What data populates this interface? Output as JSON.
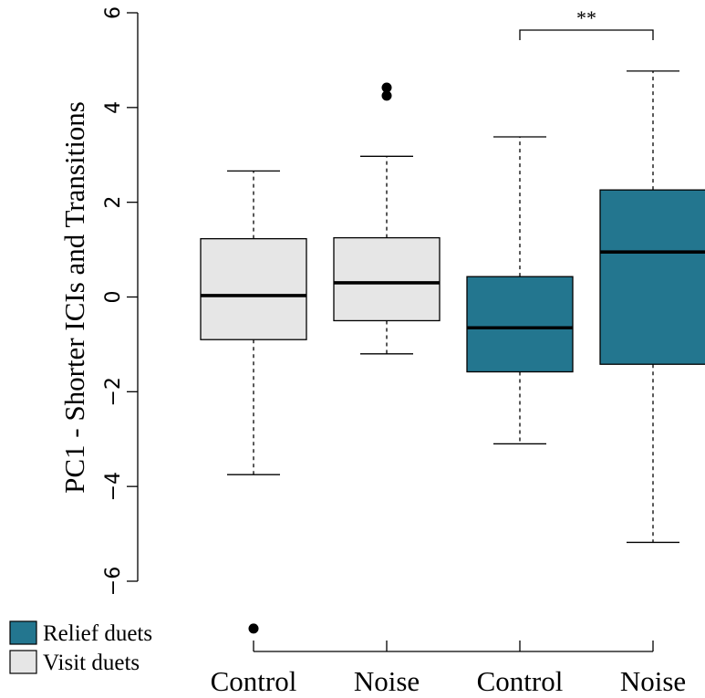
{
  "chart_data": {
    "type": "box",
    "ylabel": "PC1 - Shorter ICIs and Transitions",
    "ylim": [
      -6,
      6
    ],
    "yticks": [
      -6,
      -4,
      -2,
      0,
      2,
      4,
      6
    ],
    "categories": [
      "Control",
      "Noise",
      "Control",
      "Noise"
    ],
    "groups": [
      {
        "category": "Control",
        "group": "Visit duets",
        "min": -3.75,
        "q1": -0.9,
        "median": 0.03,
        "q3": 1.23,
        "max": 2.66,
        "outliers": [
          -7.0
        ]
      },
      {
        "category": "Noise",
        "group": "Visit duets",
        "min": -1.2,
        "q1": -0.5,
        "median": 0.3,
        "q3": 1.25,
        "max": 2.97,
        "outliers": [
          4.42,
          4.25
        ]
      },
      {
        "category": "Control",
        "group": "Relief duets",
        "min": -3.1,
        "q1": -1.58,
        "median": -0.65,
        "q3": 0.43,
        "max": 3.38,
        "outliers": []
      },
      {
        "category": "Noise",
        "group": "Relief duets",
        "min": -5.18,
        "q1": -1.42,
        "median": 0.95,
        "q3": 2.26,
        "max": 4.77,
        "outliers": []
      }
    ],
    "significance": {
      "label": "**",
      "from": 2,
      "to": 3
    },
    "legend": {
      "placement": "bottom-left",
      "entries": [
        {
          "label": "Relief duets",
          "color": "#23768f"
        },
        {
          "label": "Visit duets",
          "color": "#e6e6e6"
        }
      ]
    }
  }
}
